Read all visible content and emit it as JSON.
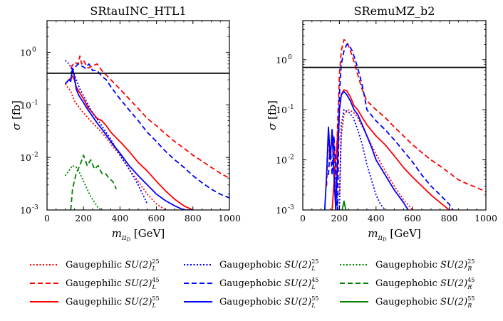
{
  "chart_data": [
    {
      "type": "line",
      "title": "SRtauINC_HTL1",
      "xlabel": "m_πD [GeV]",
      "ylabel": "σ [fb]",
      "xlim": [
        0,
        1000
      ],
      "ylim": [
        0.001,
        4.0
      ],
      "yscale": "log",
      "x_ticks": [
        0,
        200,
        400,
        600,
        800,
        1000
      ],
      "x_tick_labels": [
        "0",
        "200",
        "400",
        "600",
        "800",
        "1000"
      ],
      "y_ticks": [
        0.001,
        0.01,
        0.1,
        1.0
      ],
      "y_tick_labels": [
        "10",
        "10",
        "10",
        "10"
      ],
      "y_tick_exponents": [
        "-3",
        "-2",
        "-1",
        "0"
      ],
      "limit_line": 0.4,
      "series": [
        {
          "name": "Gaugephilic SU(2)_L^25",
          "color": "#ff0000",
          "dash": "dotted",
          "x": [
            100,
            130,
            150,
            175,
            200,
            250,
            300,
            350,
            400,
            450,
            500,
            550,
            600,
            650
          ],
          "y": [
            0.25,
            0.18,
            0.12,
            0.09,
            0.07,
            0.045,
            0.03,
            0.018,
            0.011,
            0.006,
            0.0035,
            0.002,
            0.0013,
            0.001
          ]
        },
        {
          "name": "Gaugephilic SU(2)_L^45",
          "color": "#ff0000",
          "dash": "dashed",
          "x": [
            130,
            150,
            170,
            180,
            190,
            200,
            225,
            250,
            275,
            300,
            350,
            400,
            450,
            500,
            550,
            600,
            650,
            700,
            750,
            800,
            850,
            900,
            950,
            1000
          ],
          "y": [
            0.5,
            0.65,
            0.6,
            0.85,
            0.6,
            0.7,
            0.5,
            0.55,
            0.6,
            0.45,
            0.3,
            0.2,
            0.13,
            0.085,
            0.055,
            0.04,
            0.028,
            0.02,
            0.015,
            0.011,
            0.0085,
            0.0065,
            0.005,
            0.004
          ]
        },
        {
          "name": "Gaugephilic SU(2)_L^55",
          "color": "#ff0000",
          "dash": "solid",
          "x": [
            100,
            120,
            140,
            150,
            160,
            175,
            200,
            225,
            250,
            275,
            300,
            325,
            350,
            400,
            450,
            500,
            550,
            600,
            650,
            700,
            750,
            800
          ],
          "y": [
            0.25,
            0.3,
            0.35,
            0.3,
            0.22,
            0.18,
            0.13,
            0.09,
            0.07,
            0.055,
            0.05,
            0.04,
            0.03,
            0.02,
            0.013,
            0.008,
            0.0055,
            0.0035,
            0.0023,
            0.0016,
            0.0012,
            0.001
          ]
        },
        {
          "name": "Gaugephobic SU(2)_L^25",
          "color": "#0000ff",
          "dash": "dotted",
          "x": [
            100,
            120,
            140,
            160,
            180,
            200,
            225,
            250,
            300,
            350,
            400,
            450,
            500,
            550
          ],
          "y": [
            0.7,
            0.6,
            0.45,
            0.3,
            0.2,
            0.15,
            0.1,
            0.07,
            0.04,
            0.022,
            0.011,
            0.006,
            0.003,
            0.0013
          ]
        },
        {
          "name": "Gaugephobic SU(2)_L^45",
          "color": "#0000ff",
          "dash": "dashed",
          "x": [
            130,
            150,
            170,
            190,
            210,
            230,
            250,
            275,
            300,
            325,
            350,
            400,
            450,
            500,
            550,
            600,
            650,
            700,
            750,
            800,
            850,
            900,
            950,
            1000
          ],
          "y": [
            0.4,
            0.5,
            0.6,
            0.55,
            0.5,
            0.6,
            0.45,
            0.45,
            0.35,
            0.3,
            0.22,
            0.13,
            0.08,
            0.05,
            0.03,
            0.02,
            0.013,
            0.009,
            0.0065,
            0.0045,
            0.0033,
            0.0025,
            0.002,
            0.0017
          ]
        },
        {
          "name": "Gaugephobic SU(2)_L^55",
          "color": "#0000ff",
          "dash": "solid",
          "x": [
            100,
            120,
            130,
            140,
            150,
            160,
            175,
            200,
            225,
            250,
            275,
            300,
            350,
            400,
            450,
            500,
            550,
            600,
            650,
            700,
            750,
            800
          ],
          "y": [
            0.25,
            0.3,
            0.28,
            0.5,
            0.35,
            0.2,
            0.15,
            0.11,
            0.08,
            0.06,
            0.045,
            0.035,
            0.02,
            0.012,
            0.007,
            0.0045,
            0.003,
            0.002,
            0.0015,
            0.0012,
            0.001,
            0.001
          ]
        },
        {
          "name": "Gaugephobic SU(2)_R^25",
          "color": "#008000",
          "dash": "dotted",
          "x": [
            100,
            120,
            140,
            160,
            180,
            200,
            220,
            240,
            260,
            280,
            300
          ],
          "y": [
            0.0045,
            0.0055,
            0.007,
            0.0065,
            0.005,
            0.0035,
            0.0025,
            0.0018,
            0.0014,
            0.0011,
            0.001
          ]
        },
        {
          "name": "Gaugephobic SU(2)_R^45",
          "color": "#008000",
          "dash": "dashed",
          "x": [
            130,
            140,
            160,
            180,
            200,
            220,
            240,
            260,
            280,
            300,
            320,
            340,
            360,
            380
          ],
          "y": [
            0.001,
            0.0025,
            0.005,
            0.007,
            0.011,
            0.007,
            0.009,
            0.006,
            0.007,
            0.005,
            0.005,
            0.004,
            0.0035,
            0.0025
          ]
        },
        {
          "name": "Gaugephobic SU(2)_R^55",
          "color": "#008000",
          "dash": "solid",
          "x": [],
          "y": []
        }
      ]
    },
    {
      "type": "line",
      "title": "SRemuMZ_b2",
      "xlabel": "m_πD [GeV]",
      "ylabel": "σ [fb]",
      "xlim": [
        0,
        1000
      ],
      "ylim": [
        0.001,
        6.0
      ],
      "yscale": "log",
      "x_ticks": [
        0,
        200,
        400,
        600,
        800,
        1000
      ],
      "x_tick_labels": [
        "0",
        "200",
        "400",
        "600",
        "800",
        "1000"
      ],
      "y_ticks": [
        0.001,
        0.01,
        0.1,
        1.0
      ],
      "y_tick_labels": [
        "10",
        "10",
        "10",
        "10"
      ],
      "y_tick_exponents": [
        "-3",
        "-2",
        "-1",
        "0"
      ],
      "limit_line": 0.7,
      "series": [
        {
          "name": "Gaugephilic SU(2)_L^25",
          "color": "#ff0000",
          "dash": "dotted",
          "x": [
            200,
            210,
            225,
            250,
            275,
            300,
            350,
            400,
            450,
            500,
            550,
            600
          ],
          "y": [
            0.002,
            0.03,
            0.08,
            0.1,
            0.09,
            0.07,
            0.03,
            0.013,
            0.006,
            0.003,
            0.0016,
            0.001
          ]
        },
        {
          "name": "Gaugephilic SU(2)_L^45",
          "color": "#ff0000",
          "dash": "dashed",
          "x": [
            130,
            140,
            150,
            160,
            170,
            180,
            190,
            200,
            210,
            225,
            240,
            260,
            280,
            300,
            325,
            350,
            400,
            450,
            500,
            550,
            600,
            650,
            700,
            750,
            800,
            850,
            900,
            950,
            1000
          ],
          "y": [
            0.003,
            0.03,
            0.01,
            0.04,
            0.02,
            0.001,
            0.05,
            0.5,
            1.5,
            2.5,
            2.3,
            1.5,
            0.9,
            0.5,
            0.25,
            0.15,
            0.1,
            0.07,
            0.045,
            0.03,
            0.02,
            0.014,
            0.01,
            0.0075,
            0.0055,
            0.004,
            0.0033,
            0.0028,
            0.0023
          ]
        },
        {
          "name": "Gaugephilic SU(2)_L^55",
          "color": "#ff0000",
          "dash": "solid",
          "x": [
            160,
            180,
            200,
            210,
            225,
            240,
            260,
            280,
            300,
            325,
            350,
            400,
            450,
            500,
            550,
            600,
            650,
            700,
            750,
            800
          ],
          "y": [
            0.001,
            0.01,
            0.1,
            0.2,
            0.25,
            0.24,
            0.18,
            0.12,
            0.1,
            0.07,
            0.05,
            0.03,
            0.02,
            0.012,
            0.007,
            0.0045,
            0.003,
            0.002,
            0.0014,
            0.001
          ]
        },
        {
          "name": "Gaugephobic SU(2)_L^25",
          "color": "#0000ff",
          "dash": "dotted",
          "x": [
            200,
            210,
            225,
            250,
            275,
            300,
            325,
            350,
            375,
            400,
            425,
            450
          ],
          "y": [
            0.001,
            0.05,
            0.1,
            0.09,
            0.07,
            0.04,
            0.02,
            0.008,
            0.004,
            0.002,
            0.0013,
            0.001
          ]
        },
        {
          "name": "Gaugephobic SU(2)_L^45",
          "color": "#0000ff",
          "dash": "dashed",
          "x": [
            140,
            150,
            160,
            170,
            180,
            190,
            200,
            210,
            225,
            240,
            250,
            270,
            290,
            310,
            330,
            350,
            400,
            450,
            500,
            550,
            600,
            650,
            700,
            750,
            800,
            820
          ],
          "y": [
            0.005,
            0.02,
            0.005,
            0.03,
            0.005,
            0.001,
            0.2,
            0.8,
            1.5,
            2.0,
            2.0,
            1.5,
            0.9,
            0.5,
            0.25,
            0.1,
            0.06,
            0.04,
            0.025,
            0.015,
            0.009,
            0.005,
            0.003,
            0.002,
            0.0013,
            0.001
          ]
        },
        {
          "name": "Gaugephobic SU(2)_L^55",
          "color": "#0000ff",
          "dash": "solid",
          "x": [
            120,
            130,
            140,
            150,
            160,
            170,
            180,
            200,
            210,
            225,
            240,
            260,
            280,
            300,
            325,
            350,
            375,
            400,
            450,
            500,
            550,
            575
          ],
          "y": [
            0.001,
            0.005,
            0.045,
            0.01,
            0.04,
            0.005,
            0.001,
            0.1,
            0.2,
            0.23,
            0.2,
            0.15,
            0.1,
            0.08,
            0.05,
            0.03,
            0.018,
            0.01,
            0.005,
            0.0025,
            0.0014,
            0.001
          ]
        },
        {
          "name": "Gaugephobic SU(2)_R^25",
          "color": "#008000",
          "dash": "dotted",
          "x": [],
          "y": []
        },
        {
          "name": "Gaugephobic SU(2)_R^45",
          "color": "#008000",
          "dash": "dashed",
          "x": [],
          "y": []
        },
        {
          "name": "Gaugephobic SU(2)_R^55",
          "color": "#008000",
          "dash": "solid",
          "x": [
            215,
            225,
            235
          ],
          "y": [
            0.001,
            0.0015,
            0.001
          ]
        }
      ]
    }
  ],
  "legend": [
    {
      "prefix": "Gaugephilic",
      "group": "SU(2)",
      "sub": "L",
      "sup": "25",
      "color": "#ff0000",
      "dash": "dotted"
    },
    {
      "prefix": "Gaugephobic",
      "group": "SU(2)",
      "sub": "L",
      "sup": "25",
      "color": "#0000ff",
      "dash": "dotted"
    },
    {
      "prefix": "Gaugephobic",
      "group": "SU(2)",
      "sub": "R",
      "sup": "25",
      "color": "#008000",
      "dash": "dotted"
    },
    {
      "prefix": "Gaugephilic",
      "group": "SU(2)",
      "sub": "L",
      "sup": "45",
      "color": "#ff0000",
      "dash": "dashed"
    },
    {
      "prefix": "Gaugephobic",
      "group": "SU(2)",
      "sub": "L",
      "sup": "45",
      "color": "#0000ff",
      "dash": "dashed"
    },
    {
      "prefix": "Gaugephobic",
      "group": "SU(2)",
      "sub": "R",
      "sup": "45",
      "color": "#008000",
      "dash": "dashed"
    },
    {
      "prefix": "Gaugephilic",
      "group": "SU(2)",
      "sub": "L",
      "sup": "55",
      "color": "#ff0000",
      "dash": "solid"
    },
    {
      "prefix": "Gaugephobic",
      "group": "SU(2)",
      "sub": "L",
      "sup": "55",
      "color": "#0000ff",
      "dash": "solid"
    },
    {
      "prefix": "Gaugephobic",
      "group": "SU(2)",
      "sub": "R",
      "sup": "55",
      "color": "#008000",
      "dash": "solid"
    }
  ],
  "axis_text": {
    "ylabel_symbol": "σ",
    "ylabel_unit": "[fb]",
    "xlabel_symbol": "m",
    "xlabel_sub": "π",
    "xlabel_subsub": "D",
    "xlabel_unit": "[GeV]"
  }
}
